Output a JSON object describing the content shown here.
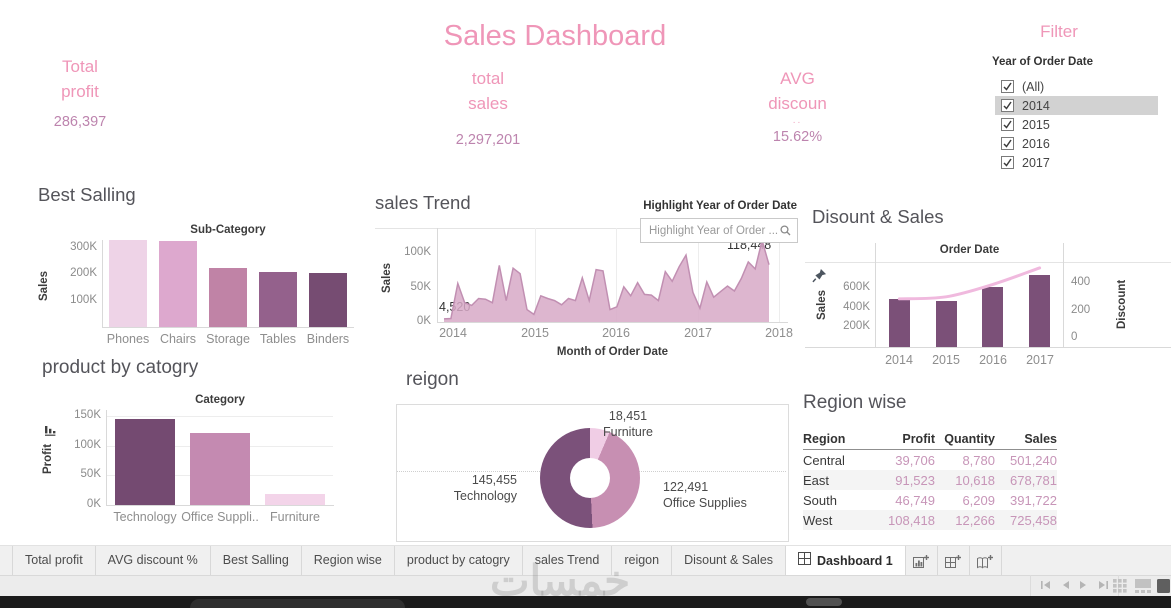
{
  "header": {
    "title": "Sales Dashboard",
    "kpis": [
      {
        "id": "total-profit",
        "label_lines": [
          "Total",
          "profit"
        ],
        "value": "286,397"
      },
      {
        "id": "total-sales",
        "label_lines": [
          "total",
          "sales"
        ],
        "value": "2,297,201"
      },
      {
        "id": "avg-discount",
        "label_lines": [
          "AVG",
          "discoun"
        ],
        "truncation": "..",
        "value": "15.62%"
      }
    ]
  },
  "filter": {
    "title": "Filter",
    "field_label": "Year of Order Date",
    "options": [
      {
        "label": "(All)",
        "checked": true,
        "highlighted": false
      },
      {
        "label": "2014",
        "checked": true,
        "highlighted": true
      },
      {
        "label": "2015",
        "checked": true,
        "highlighted": false
      },
      {
        "label": "2016",
        "checked": true,
        "highlighted": false
      },
      {
        "label": "2017",
        "checked": true,
        "highlighted": false
      }
    ]
  },
  "chart_data": [
    {
      "type": "bar",
      "title": "Best Salling",
      "x_axis_title": "Sub-Category",
      "y_axis_title": "Sales",
      "categories": [
        "Phones",
        "Chairs",
        "Storage",
        "Tables",
        "Binders"
      ],
      "values": [
        330000,
        328000,
        224000,
        207000,
        203000
      ],
      "bar_colors": [
        "#eed3e7",
        "#dda8ce",
        "#c083a6",
        "#94618c",
        "#764c72"
      ],
      "yticks": [
        {
          "label": "300K",
          "value": 300000
        },
        {
          "label": "200K",
          "value": 200000
        },
        {
          "label": "100K",
          "value": 100000
        }
      ],
      "ylim": [
        0,
        330000
      ]
    },
    {
      "type": "area",
      "title": "sales Trend",
      "x_axis_title": "Month of Order Date",
      "y_axis_title": "Sales",
      "highlight_label": "Highlight Year of Order Date",
      "search_placeholder": "Highlight Year of Order ...",
      "xticks": [
        "2014",
        "2015",
        "2016",
        "2017",
        "2018"
      ],
      "yticks": [
        {
          "label": "100K",
          "value": 100000
        },
        {
          "label": "50K",
          "value": 50000
        },
        {
          "label": "0K",
          "value": 0
        }
      ],
      "annotations": [
        {
          "text": "4,520"
        },
        {
          "text": "118,448"
        }
      ],
      "monthly_sales": [
        4520,
        5000,
        56000,
        28000,
        24000,
        34000,
        33000,
        28000,
        82000,
        31000,
        78000,
        70000,
        18000,
        11000,
        38000,
        34000,
        31000,
        25000,
        34000,
        31000,
        64000,
        31000,
        76000,
        74000,
        18000,
        22000,
        51000,
        38000,
        57000,
        40000,
        39000,
        31000,
        73000,
        59000,
        80000,
        97000,
        43000,
        20000,
        58000,
        36000,
        44000,
        52000,
        45000,
        63000,
        87000,
        77000,
        118448,
        83000
      ],
      "fill_color": "#d7a9c7",
      "stroke_color": "#c18fb2",
      "ylim": [
        0,
        118448
      ]
    },
    {
      "type": "combo",
      "title": "Disount & Sales",
      "x_axis_title": "Order Date",
      "left_axis_title": "Sales",
      "right_axis_title": "Discount",
      "categories": [
        "2014",
        "2015",
        "2016",
        "2017"
      ],
      "bar_series": {
        "name": "Sales",
        "values": [
          484000,
          470000,
          609000,
          733000
        ],
        "color": "#7b5078"
      },
      "line_series": {
        "name": "Discount",
        "values": [
          285,
          300,
          390,
          510
        ],
        "color": "#f0b9de"
      },
      "left_yticks": [
        {
          "label": "600K",
          "value": 600000
        },
        {
          "label": "400K",
          "value": 400000
        },
        {
          "label": "200K",
          "value": 200000
        }
      ],
      "right_yticks": [
        {
          "label": "400",
          "value": 400
        },
        {
          "label": "200",
          "value": 200
        },
        {
          "label": "0",
          "value": 0
        }
      ]
    },
    {
      "type": "bar",
      "title": "product by catogry",
      "x_axis_title": "Category",
      "y_axis_title": "Profit",
      "categories": [
        "Technology",
        "Office Suppli..",
        "Furniture"
      ],
      "values": [
        145455,
        122491,
        18451
      ],
      "bar_colors": [
        "#744a71",
        "#c48ab1",
        "#f3d4e9"
      ],
      "yticks": [
        {
          "label": "150K",
          "value": 150000
        },
        {
          "label": "100K",
          "value": 100000
        },
        {
          "label": "50K",
          "value": 50000
        },
        {
          "label": "0K",
          "value": 0
        }
      ],
      "ylim": [
        0,
        160000
      ]
    },
    {
      "type": "pie",
      "title": "reigon",
      "slices": [
        {
          "label": "Furniture",
          "value": 18451,
          "value_label": "18,451",
          "color": "#f0cde5"
        },
        {
          "label": "Office Supplies",
          "value": 122491,
          "value_label": "122,491",
          "color": "#c78fb2"
        },
        {
          "label": "Technology",
          "value": 145455,
          "value_label": "145,455",
          "color": "#7b517a"
        }
      ]
    },
    {
      "type": "table",
      "title": "Region wise",
      "columns": [
        "Region",
        "Profit",
        "Quantity",
        "Sales"
      ],
      "rows": [
        [
          "Central",
          "39,706",
          "8,780",
          "501,240"
        ],
        [
          "East",
          "91,523",
          "10,618",
          "678,781"
        ],
        [
          "South",
          "46,749",
          "6,209",
          "391,722"
        ],
        [
          "West",
          "108,418",
          "12,266",
          "725,458"
        ]
      ]
    }
  ],
  "tabs": {
    "sheet_tabs": [
      "Total profit",
      "AVG discount %",
      "Best Salling",
      "Region wise",
      "product by catogry",
      "sales Trend",
      "reigon",
      "Disount & Sales"
    ],
    "active_tab": "Dashboard 1"
  },
  "watermark": "خمسات"
}
